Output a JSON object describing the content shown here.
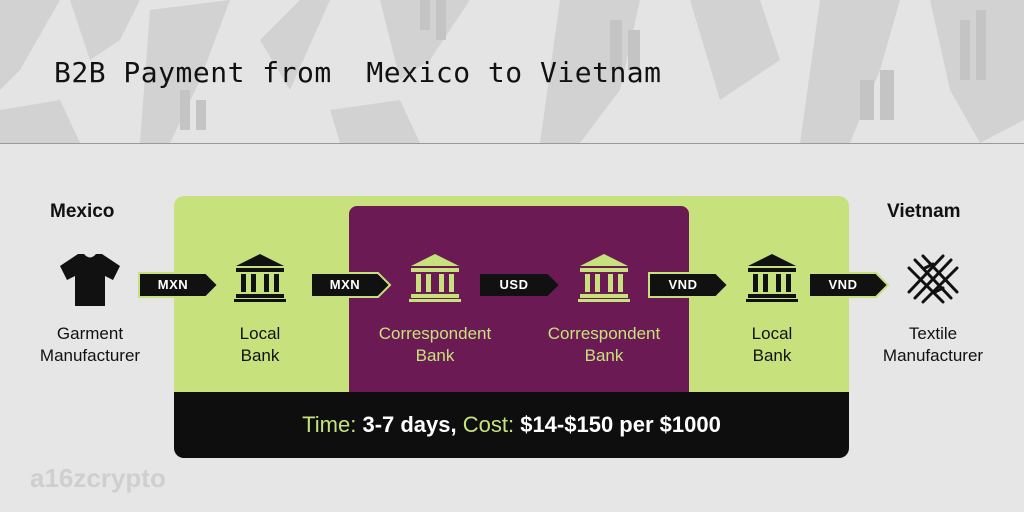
{
  "title": "B2B Payment from  Mexico to Vietnam",
  "countries": {
    "left": "Mexico",
    "right": "Vietnam"
  },
  "nodes": [
    {
      "line1": "Garment",
      "line2": "Manufacturer",
      "icon": "tshirt-icon"
    },
    {
      "line1": "Local",
      "line2": "Bank",
      "icon": "bank-icon"
    },
    {
      "line1": "Correspondent",
      "line2": "Bank",
      "icon": "bank-icon"
    },
    {
      "line1": "Correspondent",
      "line2": "Bank",
      "icon": "bank-icon"
    },
    {
      "line1": "Local",
      "line2": "Bank",
      "icon": "bank-icon"
    },
    {
      "line1": "Textile",
      "line2": "Manufacturer",
      "icon": "textile-weave-icon"
    }
  ],
  "flows": [
    "MXN",
    "MXN",
    "USD",
    "VND",
    "VND"
  ],
  "summary": {
    "time_label": "Time: ",
    "time_value": "3-7 days,",
    "cost_label": " Cost: ",
    "cost_value": "$14-$150 per $1000"
  },
  "logo": "a16zcrypto",
  "colors": {
    "green": "#c7e27d",
    "purple": "#6c1a54",
    "black": "#0e0e0e"
  }
}
